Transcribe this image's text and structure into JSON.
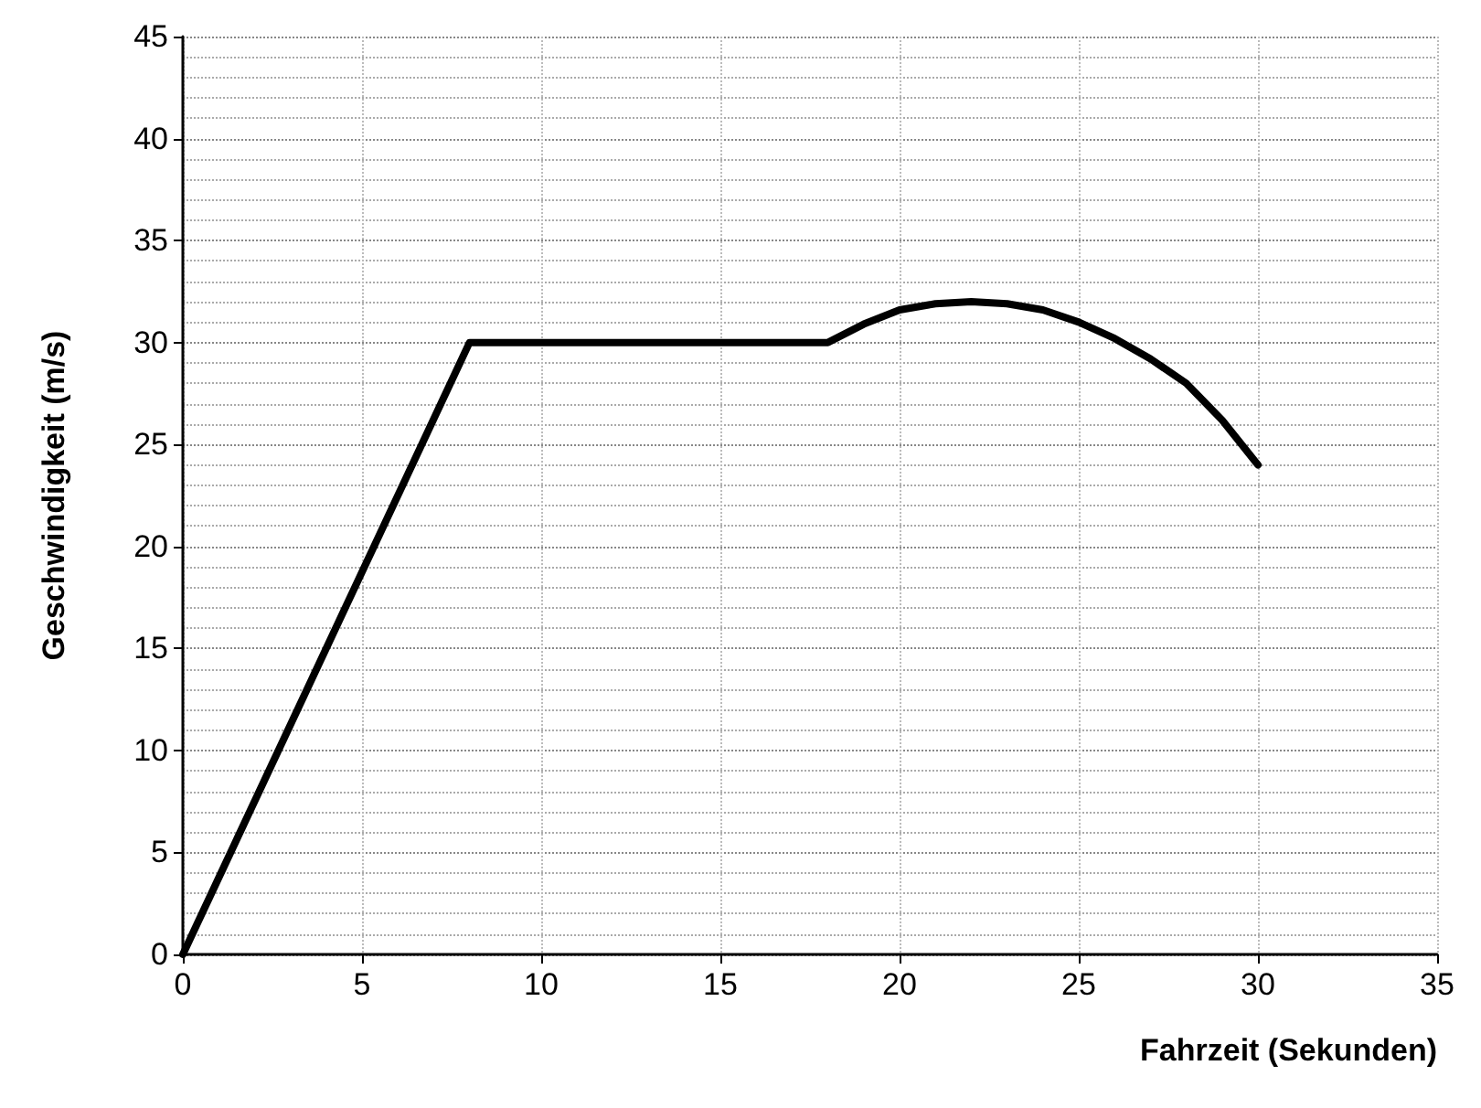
{
  "chart_data": {
    "type": "line",
    "xlabel": "Fahrzeit (Sekunden)",
    "ylabel": "Geschwindigkeit (m/s)",
    "x": [
      0,
      8,
      18,
      19,
      20,
      21,
      22,
      23,
      24,
      25,
      26,
      27,
      28,
      29,
      30
    ],
    "series": [
      {
        "color": "#000000",
        "values": [
          0,
          30,
          30,
          30.9,
          31.6,
          31.9,
          32,
          31.9,
          31.6,
          31,
          30.2,
          29.2,
          28,
          26.2,
          24
        ]
      }
    ],
    "xlim": [
      0,
      35
    ],
    "xticks": [
      0,
      5,
      10,
      15,
      20,
      25,
      30,
      35
    ],
    "ylim": [
      0,
      45
    ],
    "yticks": [
      0,
      5,
      10,
      15,
      20,
      25,
      30,
      35,
      40,
      45
    ],
    "grid": true,
    "marker": "none",
    "line_style": "solid"
  }
}
